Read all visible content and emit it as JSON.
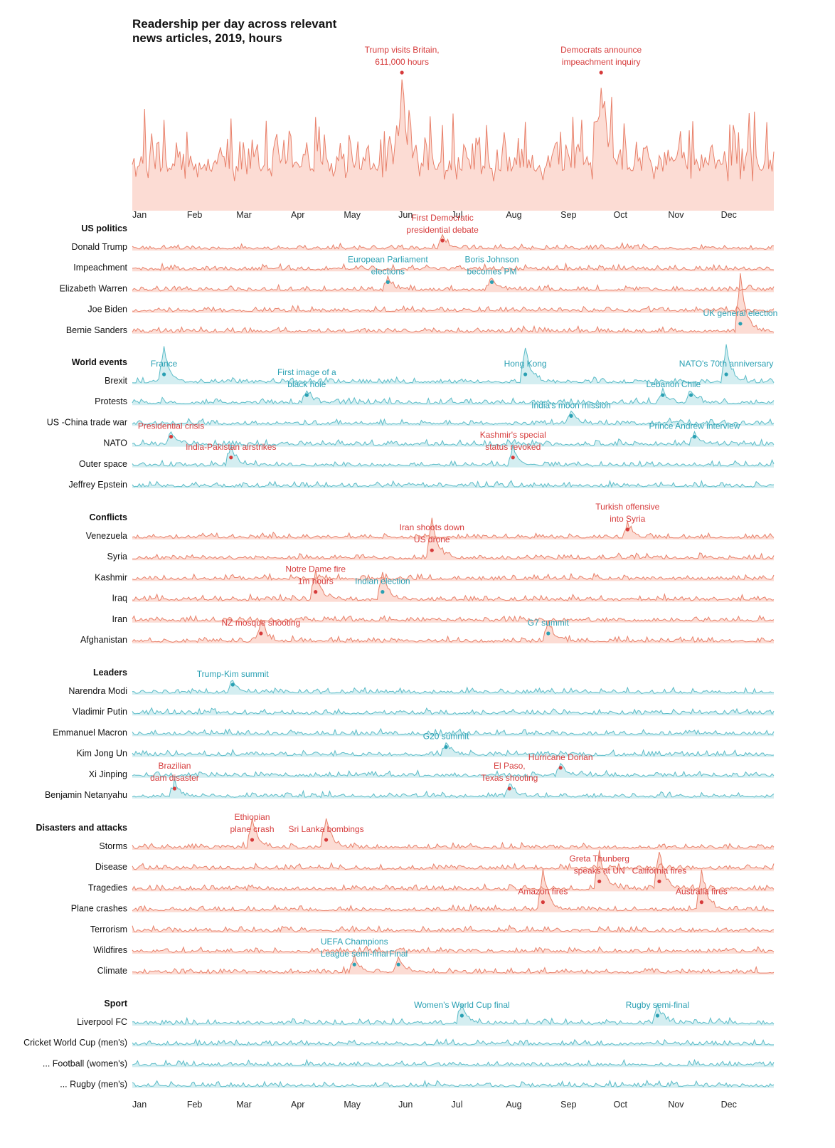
{
  "title": "Readership per day across relevant news articles, 2019, hours",
  "months": [
    "Jan",
    "Feb",
    "Mar",
    "Apr",
    "May",
    "Jun",
    "Jul",
    "Aug",
    "Sep",
    "Oct",
    "Nov",
    "Dec"
  ],
  "colors": {
    "politics": "#e8806a",
    "politics_fill": "#fbd6cc",
    "world": "#5bbcc8",
    "world_fill": "#cdebef",
    "ann_red": "#d63b3b",
    "ann_blue": "#2aa0b3"
  },
  "chart_data": {
    "type": "area",
    "title": "Readership per day across relevant news articles, 2019, hours",
    "xlabel": "",
    "ylabel": "",
    "x_range": [
      "2019-01-01",
      "2019-12-31"
    ],
    "top_series": {
      "name": "",
      "peak": {
        "date": "2019-06-03",
        "value": 611000,
        "unit": "hours"
      }
    },
    "groups": [
      {
        "label": "US politics",
        "color": "politics",
        "rows": [
          "Donald Trump",
          "Impeachment",
          "Elizabeth Warren",
          "Joe Biden",
          "Bernie Sanders"
        ]
      },
      {
        "label": "World events",
        "color": "world",
        "rows": [
          "Brexit",
          "Protests",
          "US -China trade war",
          "NATO",
          "Outer space",
          "Jeffrey Epstein"
        ]
      },
      {
        "label": "Conflicts",
        "color": "politics",
        "rows": [
          "Venezuela",
          "Syria",
          "Kashmir",
          "Iraq",
          "Iran",
          "Afghanistan"
        ]
      },
      {
        "label": "Leaders",
        "color": "world",
        "rows": [
          "Narendra Modi",
          "Vladimir Putin",
          "Emmanuel Macron",
          "Kim Jong Un",
          "Xi Jinping",
          "Benjamin Netanyahu"
        ]
      },
      {
        "label": "Disasters and attacks",
        "color": "politics",
        "rows": [
          "Storms",
          "Disease",
          "Tragedies",
          "Plane crashes",
          "Terrorism",
          "Wildfires",
          "Climate"
        ]
      },
      {
        "label": "Sport",
        "color": "world",
        "rows": [
          "Liverpool FC",
          "Cricket World Cup (men's)",
          "... Football (women's)",
          "... Rugby (men's)"
        ]
      }
    ],
    "annotations": [
      {
        "text": [
          "Trump visits Britain,",
          "611,000 hours"
        ],
        "date": "2019-06-03",
        "row": "top",
        "color": "red"
      },
      {
        "text": [
          "Democrats announce",
          "impeachment inquiry"
        ],
        "date": "2019-09-24",
        "row": "top",
        "color": "red"
      },
      {
        "text": [
          "First Democratic",
          "presidential debate"
        ],
        "date": "2019-06-26",
        "row": "Donald Trump",
        "color": "red"
      },
      {
        "text": [
          "European Parliament",
          "elections"
        ],
        "date": "2019-05-26",
        "row": "Elizabeth Warren",
        "color": "blue"
      },
      {
        "text": [
          "Boris Johnson",
          "becomes PM"
        ],
        "date": "2019-07-24",
        "row": "Elizabeth Warren",
        "color": "blue"
      },
      {
        "text": [
          "UK general election"
        ],
        "date": "2019-12-12",
        "row": "Bernie Sanders",
        "color": "blue"
      },
      {
        "text": [
          "France"
        ],
        "date": "2019-01-19",
        "row": "Brexit",
        "color": "blue"
      },
      {
        "text": [
          "Hong Kong"
        ],
        "date": "2019-08-12",
        "row": "Brexit",
        "color": "blue"
      },
      {
        "text": [
          "NATO's 70th anniversary"
        ],
        "date": "2019-12-04",
        "row": "Brexit",
        "color": "blue"
      },
      {
        "text": [
          "Lebanon"
        ],
        "date": "2019-10-29",
        "row": "Protests",
        "color": "blue"
      },
      {
        "text": [
          "Chile"
        ],
        "date": "2019-11-14",
        "row": "Protests",
        "color": "blue"
      },
      {
        "text": [
          "First image of a",
          "black hole"
        ],
        "date": "2019-04-10",
        "row": "Protests",
        "color": "blue"
      },
      {
        "text": [
          "India's moon mission"
        ],
        "date": "2019-09-07",
        "row": "US -China trade war",
        "color": "blue"
      },
      {
        "text": [
          "Prince Andrew interview"
        ],
        "date": "2019-11-16",
        "row": "NATO",
        "color": "blue"
      },
      {
        "text": [
          "Presidential crisis"
        ],
        "date": "2019-01-23",
        "row": "NATO",
        "color": "red"
      },
      {
        "text": [
          "India-Pakistan airstrikes"
        ],
        "date": "2019-02-26",
        "row": "Outer space",
        "color": "red"
      },
      {
        "text": [
          "Kashmir's special",
          "status revoked"
        ],
        "date": "2019-08-05",
        "row": "Outer space",
        "color": "red"
      },
      {
        "text": [
          "Turkish offensive",
          "into Syria"
        ],
        "date": "2019-10-09",
        "row": "Venezuela",
        "color": "red"
      },
      {
        "text": [
          "Iran shoots down",
          "US drone"
        ],
        "date": "2019-06-20",
        "row": "Syria",
        "color": "red"
      },
      {
        "text": [
          "Notre Dame fire",
          "1m hours"
        ],
        "date": "2019-04-15",
        "row": "Iraq",
        "color": "red"
      },
      {
        "text": [
          "Indian election"
        ],
        "date": "2019-05-23",
        "row": "Iraq",
        "color": "blue"
      },
      {
        "text": [
          "G7 summit"
        ],
        "date": "2019-08-25",
        "row": "Afghanistan",
        "color": "blue"
      },
      {
        "text": [
          "NZ mosque shooting"
        ],
        "date": "2019-03-15",
        "row": "Afghanistan",
        "color": "red"
      },
      {
        "text": [
          "Trump-Kim summit"
        ],
        "date": "2019-02-27",
        "row": "Narendra Modi",
        "color": "blue"
      },
      {
        "text": [
          "G20 summit"
        ],
        "date": "2019-06-28",
        "row": "Kim Jong Un",
        "color": "blue"
      },
      {
        "text": [
          "Hurricane Dorian"
        ],
        "date": "2019-09-01",
        "row": "Xi Jinping",
        "color": "red"
      },
      {
        "text": [
          "Brazilian",
          "dam disaster"
        ],
        "date": "2019-01-25",
        "row": "Benjamin Netanyahu",
        "color": "red"
      },
      {
        "text": [
          "El Paso,",
          "Texas shooting"
        ],
        "date": "2019-08-03",
        "row": "Benjamin Netanyahu",
        "color": "red"
      },
      {
        "text": [
          "Ethiopian",
          "plane crash"
        ],
        "date": "2019-03-10",
        "row": "Storms",
        "color": "red"
      },
      {
        "text": [
          "Sri Lanka bombings"
        ],
        "date": "2019-04-21",
        "row": "Storms",
        "color": "red"
      },
      {
        "text": [
          "Greta Thunberg",
          "speaks at UN"
        ],
        "date": "2019-09-23",
        "row": "Tragedies",
        "color": "red"
      },
      {
        "text": [
          "California fires"
        ],
        "date": "2019-10-27",
        "row": "Tragedies",
        "color": "red"
      },
      {
        "text": [
          "Amazon fires"
        ],
        "date": "2019-08-22",
        "row": "Plane crashes",
        "color": "red"
      },
      {
        "text": [
          "Australia fires"
        ],
        "date": "2019-11-20",
        "row": "Plane crashes",
        "color": "red"
      },
      {
        "text": [
          "UEFA Champions",
          "League semi-final"
        ],
        "date": "2019-05-07",
        "row": "Climate",
        "color": "blue"
      },
      {
        "text": [
          "Final"
        ],
        "date": "2019-06-01",
        "row": "Climate",
        "color": "blue"
      },
      {
        "text": [
          "Women's World Cup final"
        ],
        "date": "2019-07-07",
        "row": "Liverpool FC",
        "color": "blue"
      },
      {
        "text": [
          "Rugby semi-final"
        ],
        "date": "2019-10-26",
        "row": "Liverpool FC",
        "color": "blue"
      }
    ]
  }
}
